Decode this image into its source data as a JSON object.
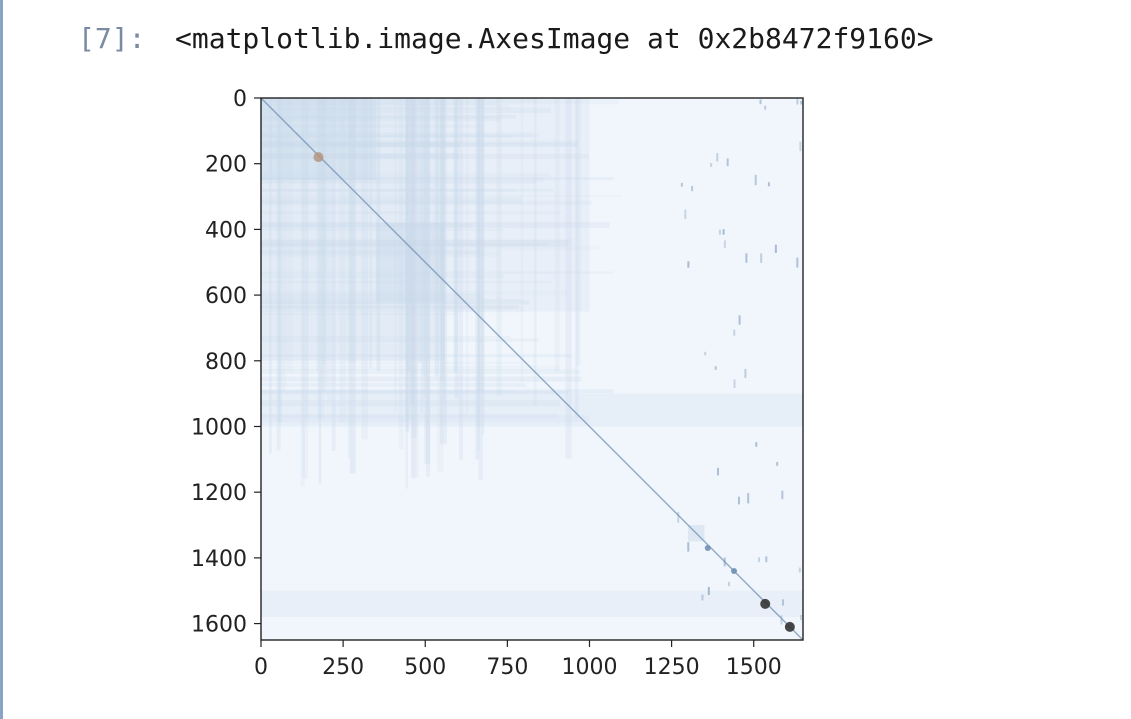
{
  "cell": {
    "prompt": "[7]:",
    "output_text": "<matplotlib.image.AxesImage at 0x2b8472f9160>"
  },
  "colors": {
    "background": "#f1f6fc",
    "diagonal": "#6f8fb3",
    "block_tint": "#c9d9ea",
    "warm_spot": "#b4917a",
    "dark_spot": "#333333",
    "cell_border": "#8aa4c8"
  },
  "chart_data": {
    "type": "heatmap",
    "colormap": "Blues",
    "xlim": [
      0,
      1650
    ],
    "ylim": [
      1650,
      0
    ],
    "y_inverted": true,
    "x_ticks": [
      0,
      250,
      500,
      750,
      1000,
      1250,
      1500
    ],
    "x_tick_labels": [
      "0",
      "250",
      "500",
      "750",
      "1000",
      "1250",
      "1500"
    ],
    "y_ticks": [
      0,
      200,
      400,
      600,
      800,
      1000,
      1200,
      1400,
      1600
    ],
    "y_tick_labels": [
      "0",
      "200",
      "400",
      "600",
      "800",
      "1000",
      "1200",
      "1400",
      "1600"
    ],
    "diagonal": {
      "from": [
        0,
        0
      ],
      "to": [
        1650,
        1650
      ]
    },
    "blocks": [
      {
        "x": [
          0,
          560
        ],
        "y": [
          0,
          800
        ],
        "intensity": 0.35
      },
      {
        "x": [
          0,
          350
        ],
        "y": [
          0,
          250
        ],
        "intensity": 0.5
      },
      {
        "x": [
          350,
          560
        ],
        "y": [
          380,
          620
        ],
        "intensity": 0.4
      },
      {
        "x": [
          560,
          1000
        ],
        "y": [
          0,
          650
        ],
        "intensity": 0.2
      },
      {
        "x": [
          0,
          1650
        ],
        "y": [
          900,
          1000
        ],
        "intensity": 0.25
      },
      {
        "x": [
          0,
          1650
        ],
        "y": [
          1500,
          1580
        ],
        "intensity": 0.2
      },
      {
        "x": [
          1300,
          1350
        ],
        "y": [
          1300,
          1350
        ],
        "intensity": 0.5
      }
    ],
    "hotspots": [
      {
        "x": 175,
        "y": 180,
        "tone": "warm"
      },
      {
        "x": 1535,
        "y": 1540,
        "tone": "dark"
      },
      {
        "x": 1610,
        "y": 1610,
        "tone": "dark"
      },
      {
        "x": 1360,
        "y": 1370,
        "tone": "mid"
      },
      {
        "x": 1440,
        "y": 1440,
        "tone": "mid"
      }
    ]
  }
}
